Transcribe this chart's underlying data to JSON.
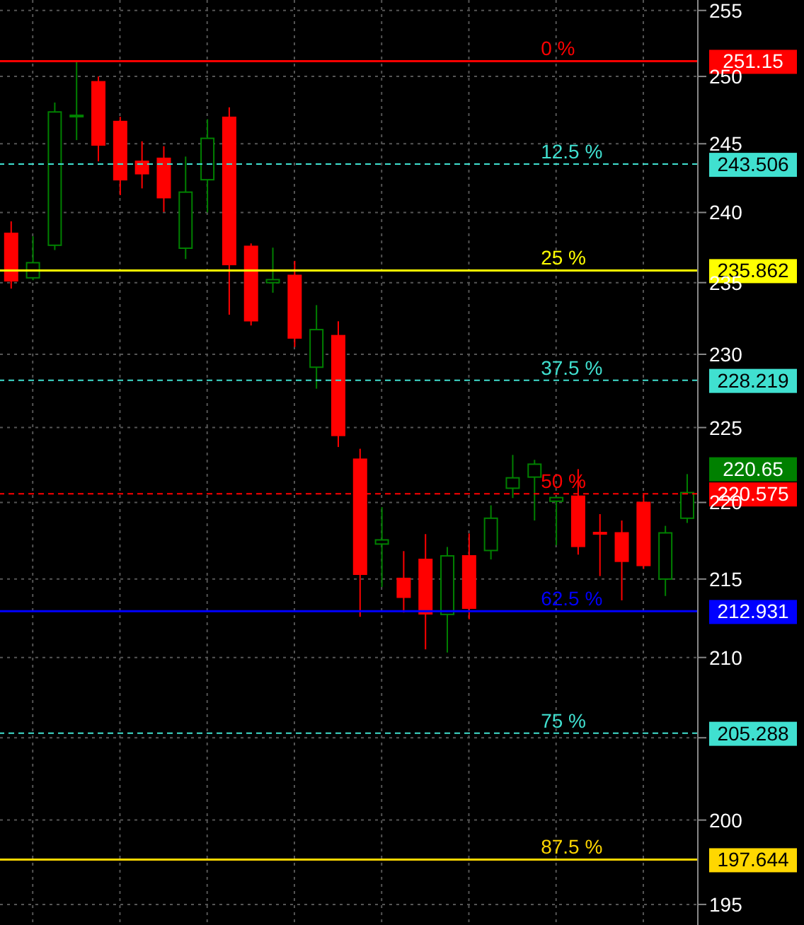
{
  "chart_data": {
    "type": "candlestick",
    "categories": [
      null,
      null,
      null,
      null,
      null,
      null,
      null,
      null,
      null,
      null,
      null,
      null,
      null,
      null,
      null,
      null,
      null,
      null,
      null,
      null,
      null,
      null,
      null,
      null,
      null,
      null,
      null,
      null,
      null,
      null,
      null,
      null
    ],
    "ohlc": [
      [
        238.5,
        239.36,
        234.58,
        235.13
      ],
      [
        235.34,
        238.29,
        235.17,
        236.41
      ],
      [
        237.65,
        248.05,
        237.31,
        247.35
      ],
      [
        247.0,
        251.15,
        245.27,
        247.1
      ],
      [
        249.6,
        250.0,
        243.71,
        244.91
      ],
      [
        246.64,
        246.99,
        241.25,
        242.37
      ],
      [
        243.71,
        245.18,
        241.74,
        242.81
      ],
      [
        243.93,
        244.82,
        240.04,
        241.07
      ],
      [
        237.44,
        244.06,
        236.67,
        241.47
      ],
      [
        242.37,
        246.81,
        240.0,
        245.4
      ],
      [
        246.95,
        247.7,
        232.75,
        236.28
      ],
      [
        237.57,
        237.78,
        232.0,
        232.33
      ],
      [
        235.0,
        237.48,
        234.29,
        235.21
      ],
      [
        235.51,
        236.54,
        230.5,
        231.13
      ],
      [
        229.11,
        233.42,
        227.64,
        231.71
      ],
      [
        231.29,
        232.29,
        223.69,
        224.47
      ],
      [
        222.87,
        223.57,
        212.58,
        215.31
      ],
      [
        217.27,
        219.69,
        214.49,
        217.54
      ],
      [
        215.04,
        216.81,
        212.85,
        213.83
      ],
      [
        216.27,
        217.92,
        210.51,
        212.77
      ],
      [
        212.73,
        217.08,
        210.31,
        216.5
      ],
      [
        216.5,
        217.96,
        212.42,
        213.13
      ],
      [
        216.85,
        219.81,
        216.27,
        218.96
      ],
      [
        220.94,
        223.16,
        220.29,
        221.63
      ],
      [
        221.68,
        222.83,
        218.81,
        222.54
      ],
      [
        220.08,
        220.35,
        217.19,
        220.32
      ],
      [
        220.41,
        222.21,
        216.58,
        217.12
      ],
      [
        218.02,
        219.23,
        215.19,
        217.98
      ],
      [
        218.0,
        218.81,
        213.63,
        216.15
      ],
      [
        220.0,
        220.53,
        215.65,
        215.88
      ],
      [
        215.0,
        218.46,
        213.91,
        218.0
      ],
      [
        218.96,
        221.88,
        218.65,
        220.65
      ]
    ],
    "colors": [
      "#ff0000",
      "#008000",
      "#008000",
      "#008000",
      "#ff0000",
      "#ff0000",
      "#ff0000",
      "#ff0000",
      "#008000",
      "#008000",
      "#ff0000",
      "#ff0000",
      "#008000",
      "#ff0000",
      "#008000",
      "#ff0000",
      "#ff0000",
      "#008000",
      "#ff0000",
      "#ff0000",
      "#008000",
      "#ff0000",
      "#008000",
      "#008000",
      "#008000",
      "#008000",
      "#ff0000",
      "#ff0000",
      "#ff0000",
      "#ff0000",
      "#008000",
      "#008000"
    ],
    "log": "y",
    "ylim": [
      193.8,
      255.8
    ],
    "yticks": [
      195,
      200,
      {
        "value": 205,
        "label": null
      },
      210,
      215,
      220,
      225,
      230,
      235,
      240,
      245,
      250,
      255
    ],
    "grid": true,
    "tick_labels": "y",
    "ref_lines": [
      {
        "axis": "y",
        "value": 251.15,
        "label": "251.15",
        "color": "#ff0000",
        "line_style": "solid"
      },
      {
        "axis": "y",
        "value": 243.506,
        "label": "243.506",
        "color": "#40e0d0",
        "line_style": "dashed"
      },
      {
        "axis": "y",
        "value": 235.862,
        "label": "235.862",
        "color": "#ffff00",
        "line_style": "solid"
      },
      {
        "axis": "y",
        "value": 228.219,
        "label": "228.219",
        "color": "#40e0d0",
        "line_style": "dashed"
      },
      {
        "axis": "y",
        "value": 220.575,
        "label": "220.575",
        "color": "#ff0000",
        "line_style": "dashed"
      },
      {
        "axis": "y",
        "value": 212.931,
        "label": "212.931",
        "color": "#0000ff",
        "line_style": "solid"
      },
      {
        "axis": "y",
        "value": 205.288,
        "label": "205.288",
        "color": "#40e0d0",
        "line_style": "dashed"
      },
      {
        "axis": "y",
        "value": 197.644,
        "label": "197.644",
        "color": "#ffd700",
        "line_style": "solid"
      }
    ],
    "annotations": [
      {
        "text": "0 %",
        "y": 251.15
      },
      {
        "text": "12.5 %",
        "y": 243.506
      },
      {
        "text": "25 %",
        "y": 235.862
      },
      {
        "text": "37.5 %",
        "y": 228.219
      },
      {
        "text": "50 %",
        "y": 220.575
      },
      {
        "text": "62.5 %",
        "y": 212.931
      },
      {
        "text": "75 %",
        "y": 205.288
      },
      {
        "text": "87.5 %",
        "y": 197.644
      },
      "220.65"
    ]
  }
}
